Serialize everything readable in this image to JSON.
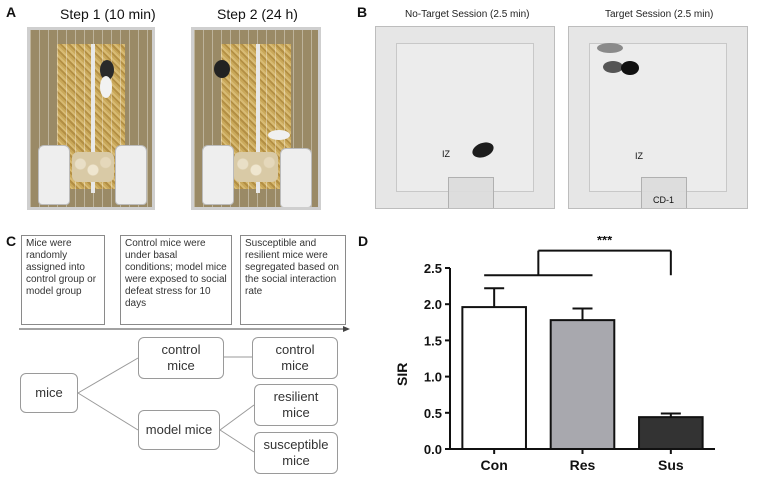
{
  "panels": {
    "a": {
      "label": "A",
      "step1_title": "Step 1 (10 min)",
      "step2_title": "Step 2 (24 h)"
    },
    "b": {
      "label": "B",
      "no_target_title": "No-Target Session (2.5 min)",
      "target_title": "Target Session (2.5 min)",
      "iz_label": "IZ",
      "cd1_label": "CD-1"
    },
    "c": {
      "label": "C",
      "timeline_boxes": [
        "Mice were randomly assigned into control group or model group",
        "Control mice were under basal conditions; model mice were exposed to social defeat stress for 10 days",
        "Susceptible and resilient mice were segregated based on the social interaction rate"
      ],
      "nodes": {
        "mice": "mice",
        "control_mice": "control mice",
        "model_mice": "model mice",
        "control_mice_2": "control mice",
        "resilient_mice": "resilient mice",
        "susceptible_mice": "susceptible mice"
      }
    },
    "d": {
      "label": "D",
      "significance": "***"
    }
  },
  "chart_data": {
    "type": "bar",
    "categories": [
      "Con",
      "Res",
      "Sus"
    ],
    "values": [
      1.96,
      1.78,
      0.44
    ],
    "errors": [
      0.26,
      0.16,
      0.05
    ],
    "colors": [
      "#ffffff",
      "#a8a8ae",
      "#333333"
    ],
    "ylabel": "SIR",
    "ylim": [
      0,
      2.5
    ],
    "yticks": [
      "0.0",
      "0.5",
      "1.0",
      "1.5",
      "2.0",
      "2.5"
    ],
    "annotation": "***"
  }
}
